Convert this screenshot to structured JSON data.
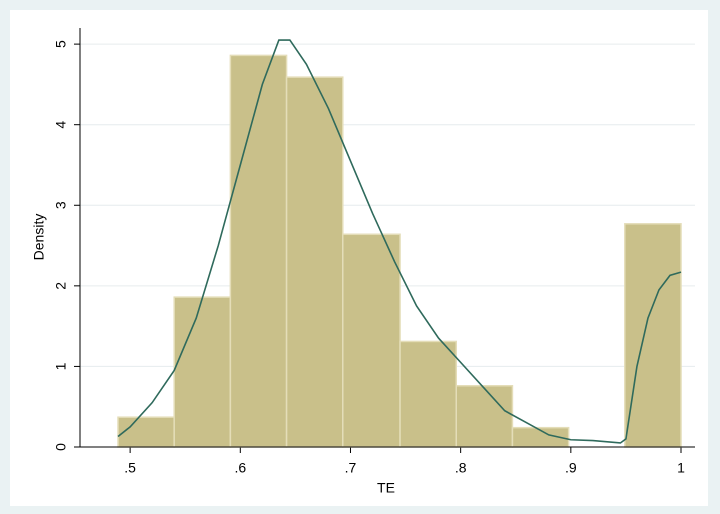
{
  "chart_data": {
    "type": "histogram",
    "xlabel": "TE",
    "ylabel": "Density",
    "bins": [
      0.489,
      0.54,
      0.591,
      0.642,
      0.693,
      0.745,
      0.796,
      0.847,
      0.898,
      0.949,
      1.0
    ],
    "values": [
      0.37,
      1.86,
      4.86,
      4.59,
      2.64,
      1.31,
      0.76,
      0.24,
      0,
      2.77
    ],
    "color": "#c9c08a",
    "density": {
      "color": "#2f6a5c",
      "x": [
        0.489,
        0.5,
        0.52,
        0.54,
        0.56,
        0.58,
        0.6,
        0.62,
        0.635,
        0.645,
        0.66,
        0.68,
        0.7,
        0.72,
        0.74,
        0.76,
        0.78,
        0.8,
        0.82,
        0.84,
        0.86,
        0.88,
        0.9,
        0.92,
        0.945,
        0.95,
        0.96,
        0.97,
        0.98,
        0.99,
        1.0
      ],
      "values": [
        0.13,
        0.25,
        0.55,
        0.95,
        1.6,
        2.5,
        3.5,
        4.5,
        5.05,
        5.05,
        4.75,
        4.2,
        3.55,
        2.9,
        2.3,
        1.75,
        1.35,
        1.05,
        0.75,
        0.45,
        0.3,
        0.15,
        0.09,
        0.08,
        0.05,
        0.1,
        1.0,
        1.6,
        1.95,
        2.13,
        2.17
      ]
    },
    "xlim": [
      0.4545,
      1.0127
    ],
    "ylim": [
      0,
      5.2
    ],
    "xticks": [
      {
        "value": 0.5,
        "label": ".5"
      },
      {
        "value": 0.6,
        "label": ".6"
      },
      {
        "value": 0.7,
        "label": ".7"
      },
      {
        "value": 0.8,
        "label": ".8"
      },
      {
        "value": 0.9,
        "label": ".9"
      },
      1
    ],
    "yticks": [
      0,
      1,
      2,
      3,
      4,
      5
    ],
    "grid": true
  }
}
